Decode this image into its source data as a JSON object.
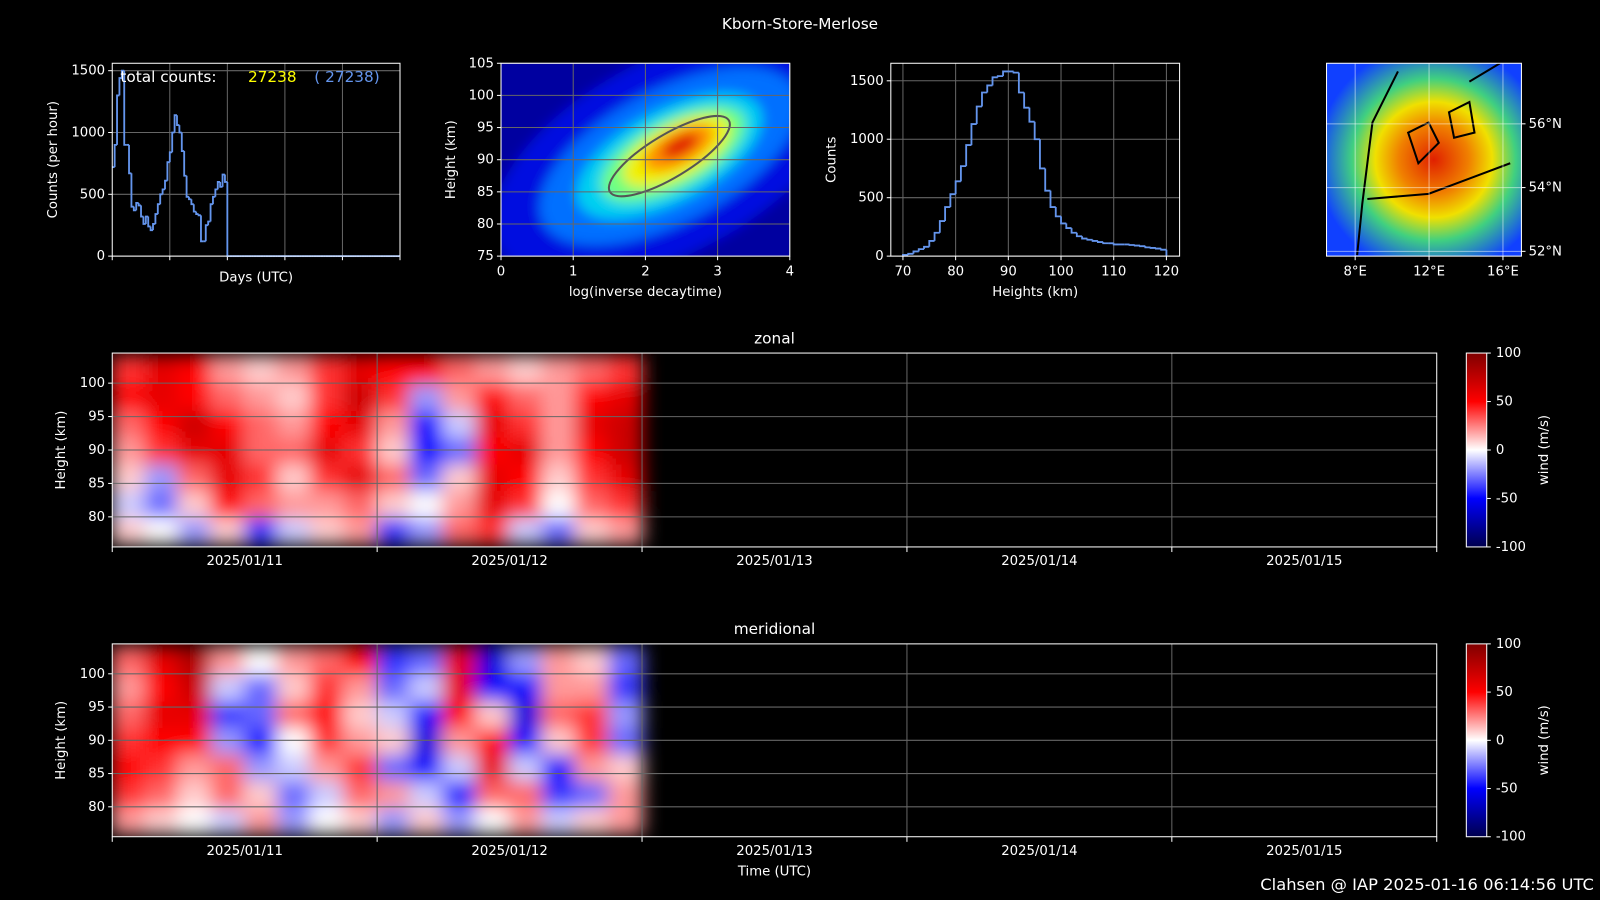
{
  "title": "Kborn-Store-Merlose",
  "footer": "Clahsen @ IAP 2025-01-16 06:14:56 UTC",
  "chart_data": [
    {
      "type": "line",
      "xlabel": "Days (UTC)",
      "ylabel": "Counts (per hour)",
      "color": "#6495ed",
      "values": [
        720,
        900,
        1300,
        1440,
        1500,
        900,
        900,
        670,
        400,
        370,
        430,
        410,
        320,
        260,
        320,
        240,
        210,
        260,
        340,
        420,
        500,
        540,
        610,
        760,
        840,
        1000,
        1140,
        1060,
        1000,
        850,
        650,
        480,
        460,
        420,
        360,
        340,
        330,
        120,
        120,
        250,
        280,
        420,
        480,
        540,
        600,
        560,
        660,
        600,
        0,
        0,
        0,
        0,
        0,
        0,
        0,
        0,
        0,
        0,
        0,
        0,
        0,
        0,
        0,
        0,
        0,
        0,
        0,
        0,
        0,
        0,
        0,
        0,
        0,
        0,
        0,
        0,
        0,
        0,
        0,
        0,
        0,
        0,
        0,
        0,
        0,
        0,
        0,
        0,
        0,
        0,
        0,
        0,
        0,
        0,
        0,
        0,
        0,
        0,
        0,
        0,
        0,
        0,
        0,
        0,
        0,
        0,
        0,
        0,
        0,
        0,
        0,
        0,
        0,
        0,
        0,
        0,
        0,
        0,
        0,
        0
      ],
      "ylim": [
        0,
        1560
      ],
      "yticks": [
        0,
        500,
        1000,
        1500
      ],
      "grid": true,
      "annotations": [
        {
          "text": "total counts:",
          "color": "#ffffff"
        },
        {
          "text": "27238",
          "color": "#ffff00"
        },
        {
          "text": "( 27238)",
          "color": "#6495ed"
        }
      ]
    },
    {
      "type": "density",
      "xlabel": "log(inverse decaytime)",
      "ylabel": "Height (km)",
      "xlim": [
        0,
        4
      ],
      "xticks": [
        0,
        1,
        2,
        3,
        4
      ],
      "ylim": [
        75,
        105
      ],
      "yticks": [
        75,
        80,
        85,
        90,
        95,
        100,
        105
      ],
      "grid": true
    },
    {
      "type": "histogram",
      "xlabel": "Heights (km)",
      "ylabel": "Counts",
      "color": "#6495ed",
      "bins": [
        70,
        71,
        72,
        73,
        74,
        75,
        76,
        77,
        78,
        79,
        80,
        81,
        82,
        83,
        84,
        85,
        86,
        87,
        88,
        89,
        90,
        91,
        92,
        93,
        94,
        95,
        96,
        97,
        98,
        99,
        100,
        101,
        102,
        103,
        104,
        105,
        106,
        107,
        108,
        109,
        110,
        111,
        112,
        113,
        114,
        115,
        116,
        117,
        118,
        119,
        120
      ],
      "values": [
        10,
        20,
        40,
        60,
        80,
        130,
        200,
        300,
        420,
        530,
        640,
        770,
        950,
        1130,
        1280,
        1400,
        1460,
        1530,
        1540,
        1580,
        1580,
        1570,
        1400,
        1270,
        1150,
        1000,
        750,
        560,
        420,
        340,
        280,
        240,
        200,
        170,
        150,
        140,
        130,
        120,
        110,
        110,
        100,
        100,
        100,
        95,
        90,
        85,
        75,
        70,
        65,
        55
      ],
      "xlim": [
        67.7,
        122.5
      ],
      "xticks": [
        70,
        80,
        90,
        100,
        110,
        120
      ],
      "ylim": [
        0,
        1650
      ],
      "yticks": [
        0,
        500,
        1000,
        1500
      ],
      "grid": true
    },
    {
      "type": "map",
      "xlim": [
        6.45,
        17.0
      ],
      "xticks": [
        {
          "value": 8,
          "label": "8°E"
        },
        {
          "value": 12,
          "label": "12°E"
        },
        {
          "value": 16,
          "label": "16°E"
        }
      ],
      "ylim": [
        51.85,
        57.9
      ],
      "yticks": [
        {
          "value": 52,
          "label": "52°N"
        },
        {
          "value": 54,
          "label": "54°N"
        },
        {
          "value": 56,
          "label": "56°N"
        }
      ],
      "grid": true
    },
    {
      "type": "heatmap",
      "title": "zonal",
      "ylabel": "Height (km)",
      "categories": [
        "2025/01/11",
        "2025/01/12",
        "2025/01/13",
        "2025/01/14",
        "2025/01/15"
      ],
      "y": [
        78,
        82,
        86,
        90,
        94,
        98,
        102
      ],
      "z": [
        [
          10,
          0,
          -20,
          10,
          -40,
          -10,
          10,
          20,
          -40,
          -20,
          30,
          40,
          -10,
          -30,
          10,
          20
        ],
        [
          -10,
          -30,
          10,
          50,
          30,
          20,
          20,
          30,
          10,
          0,
          20,
          60,
          40,
          0,
          30,
          40
        ],
        [
          10,
          -20,
          30,
          60,
          40,
          10,
          40,
          60,
          30,
          -30,
          10,
          60,
          50,
          10,
          40,
          60
        ],
        [
          20,
          40,
          60,
          60,
          30,
          30,
          60,
          40,
          10,
          -50,
          -30,
          50,
          60,
          20,
          50,
          70
        ],
        [
          30,
          50,
          70,
          50,
          30,
          20,
          50,
          60,
          20,
          -50,
          -10,
          60,
          40,
          20,
          60,
          70
        ],
        [
          50,
          60,
          50,
          30,
          20,
          10,
          40,
          70,
          40,
          -20,
          20,
          50,
          30,
          20,
          50,
          60
        ],
        [
          40,
          60,
          50,
          20,
          10,
          20,
          40,
          60,
          50,
          50,
          30,
          20,
          10,
          20,
          30,
          40
        ]
      ],
      "ylim": [
        75.5,
        104.5
      ],
      "yticks": [
        80,
        85,
        90,
        95,
        100
      ],
      "cmap": "seismic",
      "grid": true,
      "colorbar": {
        "label": "wind (m/s)",
        "lim": [
          -100,
          100
        ],
        "ticks": [
          -100,
          -50,
          0,
          50,
          100
        ]
      }
    },
    {
      "type": "heatmap",
      "title": "meridional",
      "xlabel": "Time (UTC)",
      "ylabel": "Height (km)",
      "categories": [
        "2025/01/11",
        "2025/01/12",
        "2025/01/13",
        "2025/01/14",
        "2025/01/15"
      ],
      "y": [
        78,
        82,
        86,
        90,
        94,
        98,
        102
      ],
      "z": [
        [
          20,
          10,
          0,
          -10,
          20,
          -20,
          0,
          10,
          -20,
          10,
          -20,
          0,
          20,
          -10,
          10,
          20
        ],
        [
          40,
          30,
          10,
          30,
          10,
          -30,
          -10,
          30,
          20,
          -10,
          -50,
          30,
          30,
          -40,
          -30,
          20
        ],
        [
          50,
          40,
          20,
          30,
          -20,
          -10,
          20,
          40,
          -30,
          -50,
          -10,
          60,
          -10,
          -50,
          20,
          10
        ],
        [
          40,
          50,
          50,
          -20,
          -50,
          0,
          40,
          20,
          10,
          -60,
          20,
          50,
          -50,
          10,
          40,
          -30
        ],
        [
          30,
          60,
          60,
          -40,
          -30,
          30,
          50,
          10,
          -10,
          -50,
          50,
          10,
          -60,
          30,
          40,
          -20
        ],
        [
          20,
          50,
          70,
          -10,
          -30,
          10,
          40,
          20,
          -30,
          -10,
          60,
          -50,
          -50,
          20,
          20,
          -40
        ],
        [
          30,
          60,
          80,
          20,
          0,
          20,
          30,
          50,
          -40,
          -30,
          60,
          -60,
          -20,
          20,
          10,
          -30
        ]
      ],
      "ylim": [
        75.5,
        104.5
      ],
      "yticks": [
        80,
        85,
        90,
        95,
        100
      ],
      "cmap": "seismic",
      "grid": true,
      "colorbar": {
        "label": "wind (m/s)",
        "lim": [
          -100,
          100
        ],
        "ticks": [
          -100,
          -50,
          0,
          50,
          100
        ]
      }
    }
  ]
}
